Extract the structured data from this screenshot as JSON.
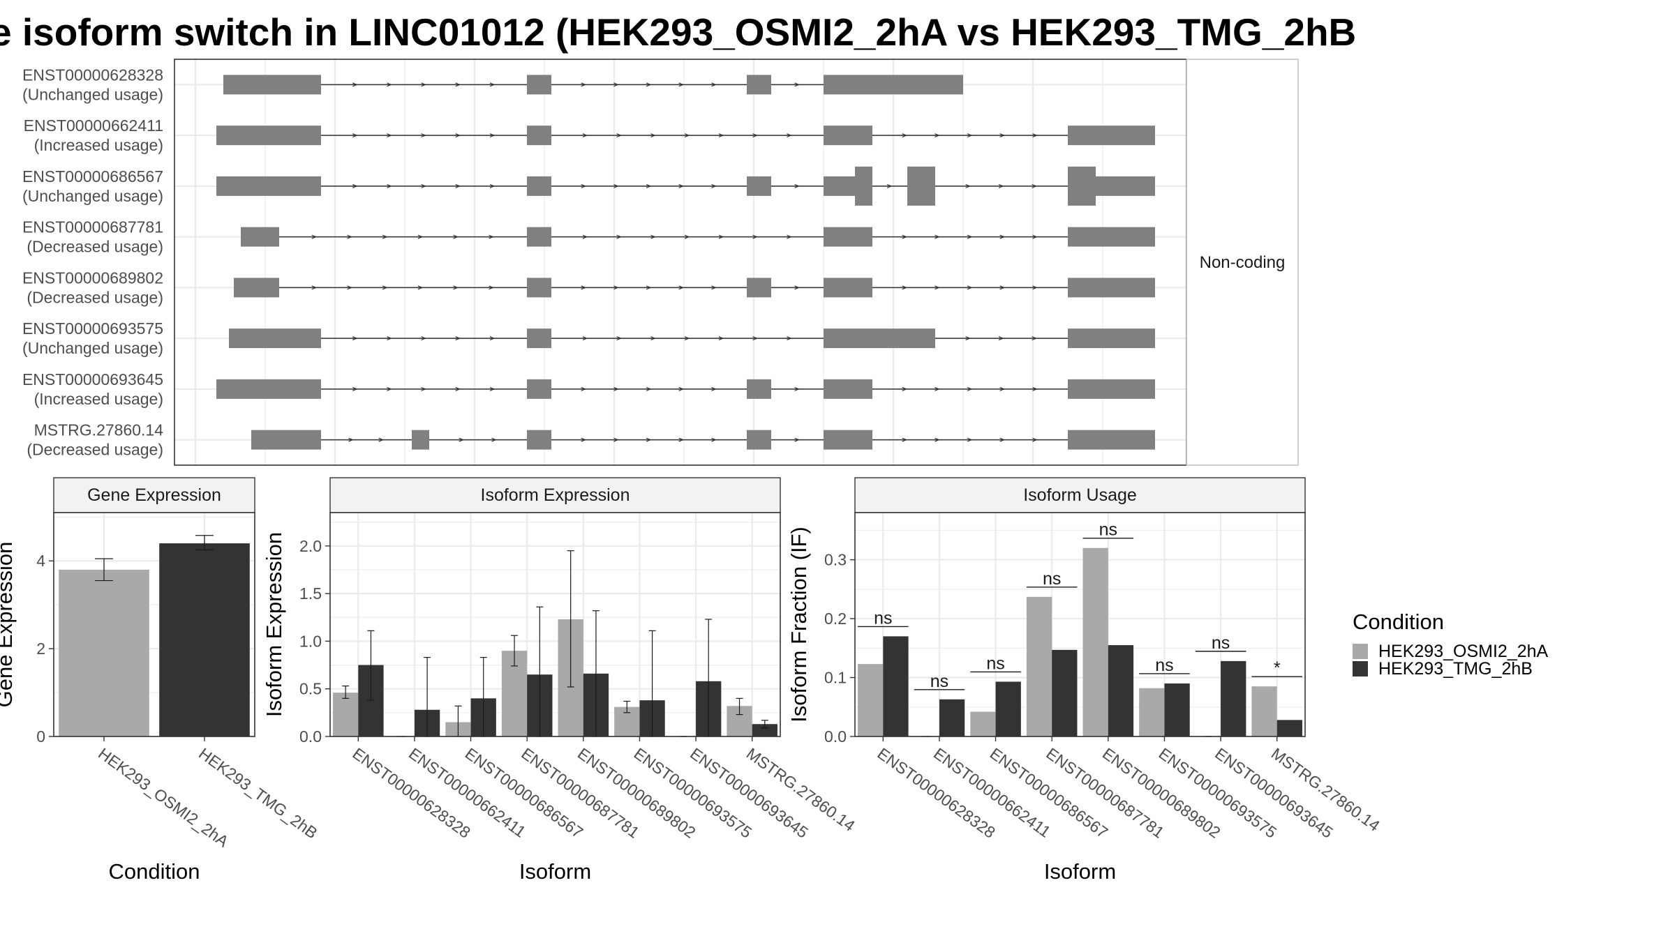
{
  "title": "e isoform switch in LINC01012 (HEK293_OSMI2_2hA vs HEK293_TMG_2hB",
  "colors": {
    "osmi": "#a9a9a9",
    "tmg": "#333333",
    "exon": "#808080",
    "grid": "#ebebeb",
    "strip": "#f2f2f2",
    "panel_border": "#333333"
  },
  "chart_data": [
    {
      "type": "table",
      "panel": "transcript-structure",
      "facet_label": "Non-coding",
      "isoforms": [
        {
          "id": "ENST00000628328",
          "usage": "(Unchanged usage)",
          "exons": [
            [
              0.04,
              0.18,
              "n"
            ],
            [
              0.475,
              0.51,
              "n"
            ],
            [
              0.79,
              0.825,
              "n"
            ],
            [
              0.9,
              1.1,
              "n"
            ]
          ]
        },
        {
          "id": "ENST00000662411",
          "usage": "(Increased usage)",
          "exons": [
            [
              0.03,
              0.18,
              "n"
            ],
            [
              0.475,
              0.51,
              "n"
            ],
            [
              0.9,
              0.97,
              "n"
            ],
            [
              1.25,
              1.375,
              "n"
            ]
          ]
        },
        {
          "id": "ENST00000686567",
          "usage": "(Unchanged usage)",
          "exons": [
            [
              0.03,
              0.18,
              "n"
            ],
            [
              0.475,
              0.51,
              "n"
            ],
            [
              0.79,
              0.825,
              "n"
            ],
            [
              0.9,
              0.945,
              "n"
            ],
            [
              0.945,
              0.97,
              "t"
            ],
            [
              1.02,
              1.06,
              "t"
            ],
            [
              1.25,
              1.29,
              "t"
            ],
            [
              1.29,
              1.375,
              "n"
            ]
          ]
        },
        {
          "id": "ENST00000687781",
          "usage": "(Decreased usage)",
          "exons": [
            [
              0.065,
              0.12,
              "n"
            ],
            [
              0.475,
              0.51,
              "n"
            ],
            [
              0.9,
              0.97,
              "n"
            ],
            [
              1.25,
              1.375,
              "n"
            ]
          ]
        },
        {
          "id": "ENST00000689802",
          "usage": "(Decreased usage)",
          "exons": [
            [
              0.055,
              0.12,
              "n"
            ],
            [
              0.475,
              0.51,
              "n"
            ],
            [
              0.79,
              0.825,
              "n"
            ],
            [
              0.9,
              0.97,
              "n"
            ],
            [
              1.25,
              1.375,
              "n"
            ]
          ]
        },
        {
          "id": "ENST00000693575",
          "usage": "(Unchanged usage)",
          "exons": [
            [
              0.048,
              0.18,
              "n"
            ],
            [
              0.475,
              0.51,
              "n"
            ],
            [
              0.9,
              1.06,
              "n"
            ],
            [
              1.25,
              1.375,
              "n"
            ]
          ]
        },
        {
          "id": "ENST00000693645",
          "usage": "(Increased usage)",
          "exons": [
            [
              0.03,
              0.18,
              "n"
            ],
            [
              0.475,
              0.51,
              "n"
            ],
            [
              0.79,
              0.825,
              "n"
            ],
            [
              0.9,
              0.97,
              "n"
            ],
            [
              1.25,
              1.375,
              "n"
            ]
          ]
        },
        {
          "id": "MSTRG.27860.14",
          "usage": "(Decreased usage)",
          "exons": [
            [
              0.08,
              0.18,
              "n"
            ],
            [
              0.31,
              0.335,
              "n"
            ],
            [
              0.475,
              0.51,
              "n"
            ],
            [
              0.79,
              0.825,
              "n"
            ],
            [
              0.9,
              0.97,
              "n"
            ],
            [
              1.25,
              1.375,
              "n"
            ]
          ]
        }
      ]
    },
    {
      "type": "bar",
      "panel": "gene-expression",
      "strip_title": "Gene Expression",
      "xlabel": "Condition",
      "ylabel": "Gene Expression",
      "ylim": [
        0,
        5.1
      ],
      "yticks": [
        "0",
        "2",
        "4"
      ],
      "categories": [
        "HEK293_OSMI2_2hA",
        "HEK293_TMG_2hB"
      ],
      "values": [
        3.8,
        4.4
      ],
      "errors": [
        [
          3.55,
          4.05
        ],
        [
          4.25,
          4.58
        ]
      ]
    },
    {
      "type": "bar",
      "panel": "isoform-expression",
      "strip_title": "Isoform Expression",
      "xlabel": "Isoform",
      "ylabel": "Isoform Expression",
      "ylim": [
        0,
        2.35
      ],
      "yticks": [
        "0.0",
        "0.5",
        "1.0",
        "1.5",
        "2.0"
      ],
      "categories": [
        "ENST00000628328",
        "ENST00000662411",
        "ENST00000686567",
        "ENST00000687781",
        "ENST00000689802",
        "ENST00000693575",
        "ENST00000693645",
        "MSTRG.27860.14"
      ],
      "series": [
        {
          "name": "HEK293_OSMI2_2hA",
          "values": [
            0.46,
            0,
            0.15,
            0.9,
            1.23,
            0.31,
            0,
            0.32
          ],
          "errors": [
            [
              0.4,
              0.53
            ],
            [
              0,
              0
            ],
            [
              0,
              0.32
            ],
            [
              0.74,
              1.06
            ],
            [
              0.52,
              1.95
            ],
            [
              0.25,
              0.37
            ],
            [
              0,
              0
            ],
            [
              0.23,
              0.4
            ]
          ]
        },
        {
          "name": "HEK293_TMG_2hB",
          "values": [
            0.75,
            0.28,
            0.4,
            0.65,
            0.66,
            0.38,
            0.58,
            0.13
          ],
          "errors": [
            [
              0.38,
              1.11
            ],
            [
              0,
              0.83
            ],
            [
              0,
              0.83
            ],
            [
              0,
              1.36
            ],
            [
              0,
              1.32
            ],
            [
              0,
              1.11
            ],
            [
              0,
              1.23
            ],
            [
              0.09,
              0.17
            ]
          ]
        }
      ]
    },
    {
      "type": "bar",
      "panel": "isoform-usage",
      "strip_title": "Isoform Usage",
      "xlabel": "Isoform",
      "ylabel": "Isoform Fraction (IF)",
      "ylim": [
        0,
        0.38
      ],
      "yticks": [
        "0.0",
        "0.1",
        "0.2",
        "0.3"
      ],
      "categories": [
        "ENST00000628328",
        "ENST00000662411",
        "ENST00000686567",
        "ENST00000687781",
        "ENST00000689802",
        "ENST00000693575",
        "ENST00000693645",
        "MSTRG.27860.14"
      ],
      "series": [
        {
          "name": "HEK293_OSMI2_2hA",
          "values": [
            0.123,
            0,
            0.042,
            0.237,
            0.32,
            0.082,
            0,
            0.085
          ]
        },
        {
          "name": "HEK293_TMG_2hB",
          "values": [
            0.17,
            0.063,
            0.093,
            0.147,
            0.155,
            0.09,
            0.128,
            0.028
          ]
        }
      ],
      "significance": [
        "ns",
        "ns",
        "ns",
        "ns",
        "ns",
        "ns",
        "ns",
        "*"
      ]
    }
  ],
  "legend": {
    "title": "Condition",
    "items": [
      "HEK293_OSMI2_2hA",
      "HEK293_TMG_2hB"
    ]
  }
}
